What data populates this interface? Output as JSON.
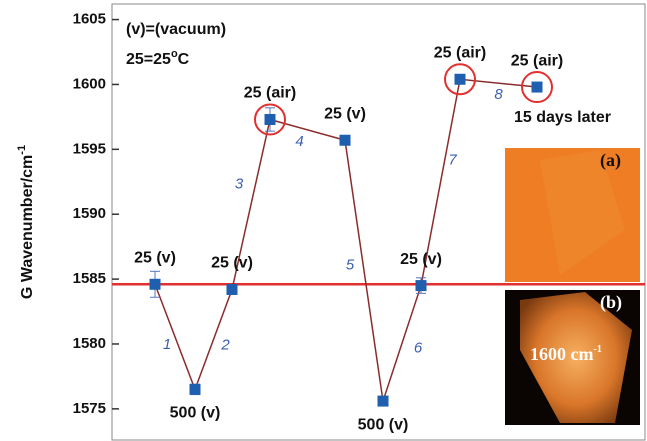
{
  "chart_data": {
    "type": "line",
    "y_label": "G Wavenumber/cm",
    "y_label_sup": "-1",
    "annotations": [
      "(v)=(vacuum)",
      "25=25",
      "o",
      "C",
      "15 days later"
    ],
    "categories": [
      null,
      null,
      null,
      null,
      null,
      null,
      null,
      null,
      null
    ],
    "values": [
      1584.6,
      1576.5,
      1584.2,
      1597.3,
      1595.7,
      1575.6,
      1584.5,
      1600.4,
      1599.8
    ],
    "errors": [
      1.0,
      0.4,
      null,
      0.9,
      null,
      null,
      0.6,
      null,
      null
    ],
    "point_labels": [
      "25 (v)",
      "500 (v)",
      "25 (v)",
      "25 (air)",
      "25 (v)",
      "500 (v)",
      "25 (v)",
      "25 (air)",
      "25 (air)"
    ],
    "step_labels": [
      "1",
      "2",
      "3",
      "4",
      "5",
      "6",
      "7",
      "8"
    ],
    "circled": [
      3,
      7,
      8
    ],
    "reference_line": 1584.6,
    "line_color": "#8b2c2c",
    "marker_color": "#1f5fb0",
    "circle_color": "#e23030",
    "ylim": [
      1572.6,
      1606.2
    ],
    "yticks": [
      1575,
      1580,
      1585,
      1590,
      1595,
      1600,
      1605
    ],
    "insets": [
      {
        "label": "(a)"
      },
      {
        "label": "(b)",
        "caption": "1600 cm",
        "caption_sup": "-1"
      }
    ]
  }
}
